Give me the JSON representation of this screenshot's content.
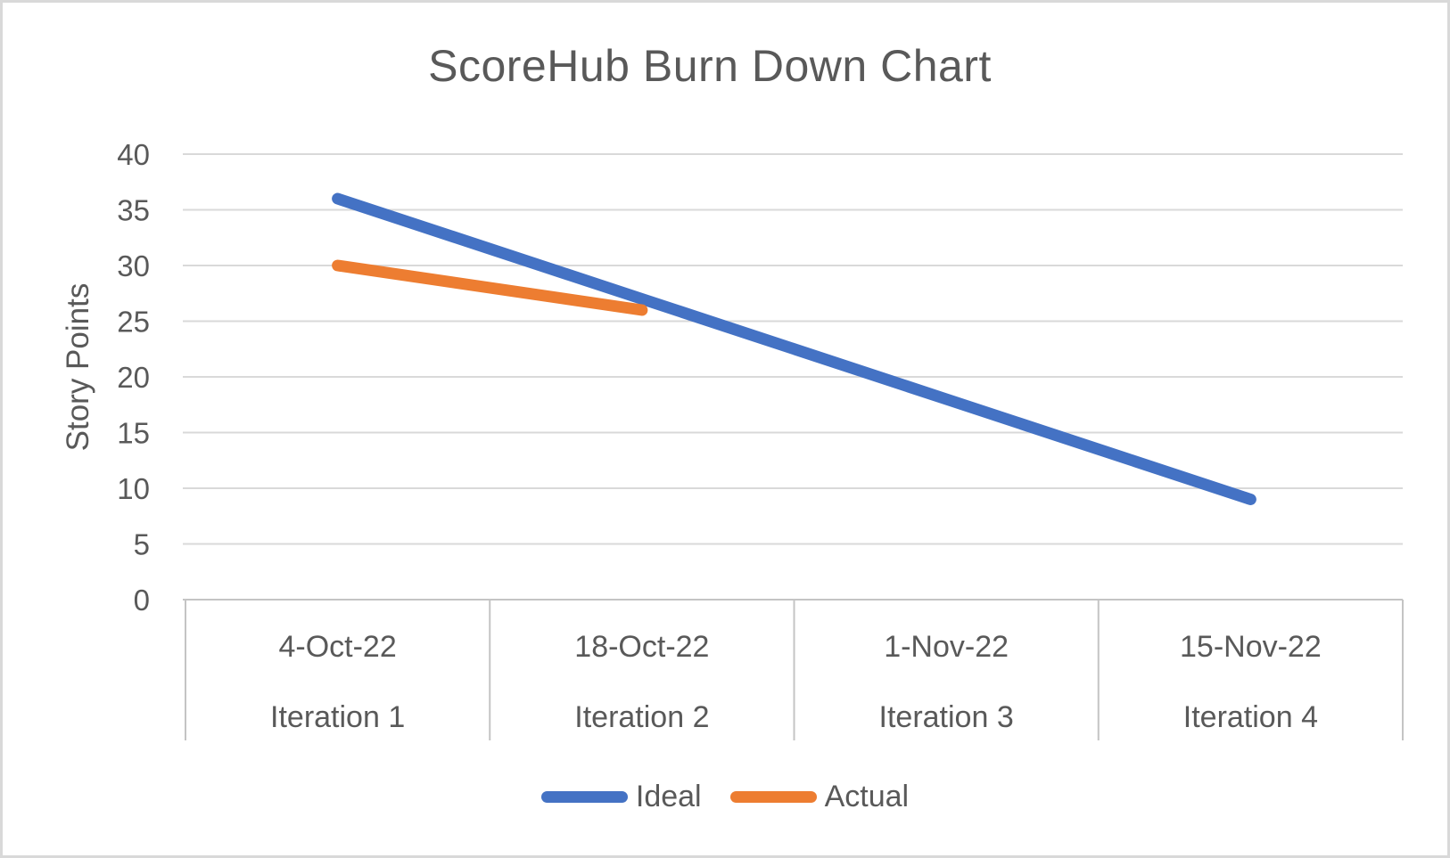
{
  "title": "ScoreHub Burn Down Chart",
  "y_axis_title": "Story Points",
  "colors": {
    "text": "#595959",
    "gridline": "#d9d9d9",
    "axis_border": "#c4c4c4",
    "ideal": "#4472C4",
    "actual": "#ED7D31"
  },
  "legend": {
    "items": [
      {
        "label": "Ideal",
        "color": "#4472C4"
      },
      {
        "label": "Actual",
        "color": "#ED7D31"
      }
    ]
  },
  "chart_data": {
    "type": "line",
    "title": "ScoreHub Burn Down Chart",
    "ylabel": "Story Points",
    "xlabel": "",
    "categories": [
      {
        "date": "4-Oct-22",
        "iteration": "Iteration 1"
      },
      {
        "date": "18-Oct-22",
        "iteration": "Iteration 2"
      },
      {
        "date": "1-Nov-22",
        "iteration": "Iteration 3"
      },
      {
        "date": "15-Nov-22",
        "iteration": "Iteration 4"
      }
    ],
    "series": [
      {
        "name": "Ideal",
        "color": "#4472C4",
        "values": [
          36,
          27,
          18,
          9
        ]
      },
      {
        "name": "Actual",
        "color": "#ED7D31",
        "values": [
          30,
          26,
          null,
          null
        ]
      }
    ],
    "ylim": [
      0,
      40
    ],
    "yticks": [
      0,
      5,
      10,
      15,
      20,
      25,
      30,
      35,
      40
    ],
    "grid": true,
    "legend_position": "bottom"
  }
}
